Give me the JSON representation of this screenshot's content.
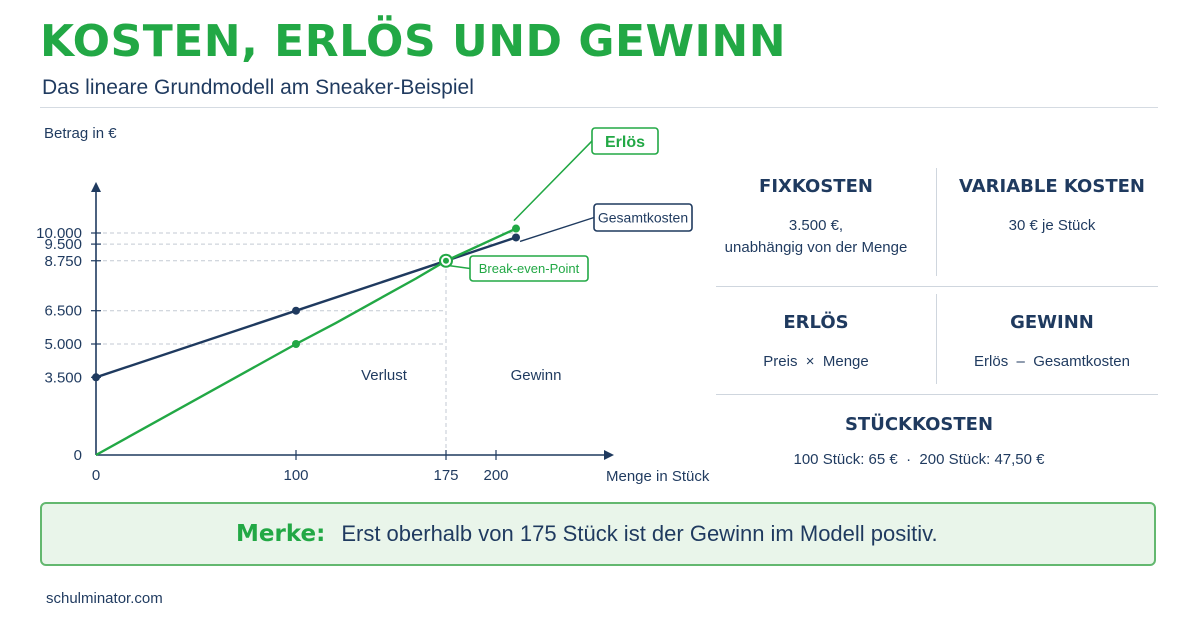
{
  "header": {
    "title": "KOSTEN, ERLÖS UND GEWINN",
    "subtitle": "Das lineare Grundmodell am Sneaker-Beispiel"
  },
  "chart_data": {
    "type": "line",
    "ylabel": "Betrag in €",
    "xlabel": "Menge in Stück",
    "x_ticks": [
      0,
      100,
      175,
      200
    ],
    "y_ticks": [
      0,
      3500,
      5000,
      6500,
      8750,
      9500,
      10000
    ],
    "y_tick_labels": [
      "0",
      "3.500",
      "5.000",
      "6.500",
      "8.750",
      "9.500",
      "10.000"
    ],
    "x_tick_labels": [
      "0",
      "100",
      "175",
      "200"
    ],
    "xlim": [
      0,
      240
    ],
    "ylim": [
      0,
      12300
    ],
    "series": [
      {
        "name": "Gesamtkosten",
        "color": "#1f3a5f",
        "x": [
          0,
          100,
          175,
          210
        ],
        "y": [
          3500,
          6500,
          8750,
          9800
        ],
        "markers": [
          [
            0,
            3500
          ],
          [
            100,
            6500
          ],
          [
            210,
            9800
          ]
        ]
      },
      {
        "name": "Erlös",
        "color": "#22a845",
        "x": [
          0,
          100,
          120,
          140,
          160,
          175,
          210
        ],
        "y": [
          0,
          5000,
          5950,
          6950,
          7950,
          8750,
          10200
        ],
        "markers": [
          [
            100,
            5000
          ],
          [
            210,
            10200
          ]
        ]
      }
    ],
    "break_even": {
      "label": "Break-even-Point",
      "x": 175,
      "y": 8750
    },
    "regions": {
      "loss": "Verlust",
      "profit": "Gewinn"
    },
    "reference_lines": [
      {
        "axis": "y",
        "value": 10000
      },
      {
        "axis": "y",
        "value": 9500
      },
      {
        "axis": "y",
        "value": 8750
      },
      {
        "axis": "y",
        "value": 6500
      },
      {
        "axis": "y",
        "value": 5000
      },
      {
        "axis": "x",
        "value": 175
      }
    ]
  },
  "info_cards": {
    "fixkosten": {
      "title": "FIXKOSTEN",
      "line1": "3.500 €,",
      "line2": "unabhängig von der Menge"
    },
    "variable": {
      "title": "VARIABLE KOSTEN",
      "text": "30 € je Stück"
    },
    "erloes": {
      "title": "ERLÖS",
      "text": "Preis  ×  Menge"
    },
    "gewinn": {
      "title": "GEWINN",
      "text": "Erlös  –  Gesamtkosten"
    },
    "stueckkosten": {
      "title": "STÜCKKOSTEN",
      "text": "100 Stück: 65 €  ·  200 Stück: 47,50 €"
    }
  },
  "merke": {
    "label": "Merke:",
    "text": "Erst oberhalb von 175 Stück ist der Gewinn im Modell positiv."
  },
  "footer": {
    "text": "schulminator.com"
  },
  "colors": {
    "accent": "#22a845",
    "navy": "#1f3a5f",
    "grid": "#c3cad3",
    "merke_bg": "#e9f5ea"
  }
}
